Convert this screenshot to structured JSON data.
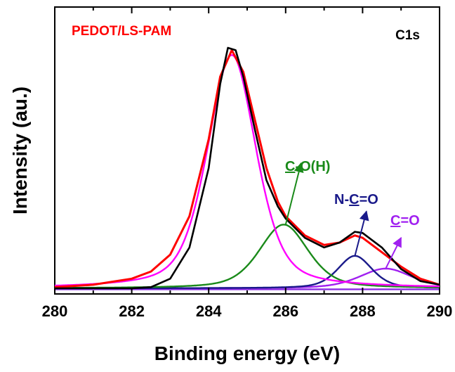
{
  "chart_data": {
    "type": "line",
    "title": "",
    "sample_label": "PEDOT/LS-PAM",
    "region_label": "C1s",
    "xlabel": "Binding energy (eV)",
    "ylabel": "Intensity (au.)",
    "xlim": [
      280,
      290
    ],
    "ylim": [
      0,
      1
    ],
    "xticks": [
      280,
      282,
      284,
      286,
      288,
      290
    ],
    "grid": false,
    "legend": "none",
    "series": [
      {
        "key": "measured",
        "color": "#000000",
        "baseline": 0.0,
        "points": [
          [
            280,
            0.0
          ],
          [
            282,
            0.0
          ],
          [
            282.5,
            0.005
          ],
          [
            283,
            0.04
          ],
          [
            283.5,
            0.17
          ],
          [
            284,
            0.5
          ],
          [
            284.3,
            0.85
          ],
          [
            284.5,
            1.0
          ],
          [
            284.7,
            0.99
          ],
          [
            284.9,
            0.88
          ],
          [
            285.2,
            0.66
          ],
          [
            285.5,
            0.45
          ],
          [
            285.8,
            0.34
          ],
          [
            286,
            0.29
          ],
          [
            286.5,
            0.21
          ],
          [
            287,
            0.17
          ],
          [
            287.4,
            0.19
          ],
          [
            287.8,
            0.235
          ],
          [
            288,
            0.23
          ],
          [
            288.5,
            0.17
          ],
          [
            289,
            0.08
          ],
          [
            289.5,
            0.03
          ],
          [
            290,
            0.015
          ]
        ]
      },
      {
        "key": "envelope",
        "color": "#ff0000",
        "baseline": 0.0,
        "points": [
          [
            280,
            0.005
          ],
          [
            281,
            0.015
          ],
          [
            282,
            0.04
          ],
          [
            282.5,
            0.07
          ],
          [
            283,
            0.14
          ],
          [
            283.5,
            0.3
          ],
          [
            284,
            0.62
          ],
          [
            284.3,
            0.88
          ],
          [
            284.6,
            0.99
          ],
          [
            284.9,
            0.9
          ],
          [
            285.2,
            0.7
          ],
          [
            285.5,
            0.5
          ],
          [
            285.8,
            0.36
          ],
          [
            286,
            0.3
          ],
          [
            286.5,
            0.22
          ],
          [
            287,
            0.18
          ],
          [
            287.4,
            0.19
          ],
          [
            287.8,
            0.22
          ],
          [
            288,
            0.21
          ],
          [
            288.5,
            0.15
          ],
          [
            289,
            0.09
          ],
          [
            289.5,
            0.04
          ],
          [
            290,
            0.015
          ]
        ]
      },
      {
        "key": "C-C/C=C",
        "color": "#ff00ff",
        "center": 284.6,
        "height": 0.97,
        "fwhm": 1.5,
        "baseline": 0.0
      },
      {
        "key": "C-O(H)",
        "color": "#1a8a1a",
        "center": 285.95,
        "height": 0.265,
        "fwhm": 1.5,
        "baseline": 0.0
      },
      {
        "key": "N-C=O",
        "color": "#1a1a8a",
        "center": 287.8,
        "height": 0.135,
        "fwhm": 1.05,
        "baseline": 0.0
      },
      {
        "key": "C=O",
        "color": "#a020f0",
        "center": 288.6,
        "height": 0.082,
        "fwhm": 1.6,
        "baseline": 0.0
      },
      {
        "key": "background",
        "color": "#8a2be2",
        "baseline": -0.004
      }
    ],
    "annotations": [
      {
        "key": "co_h",
        "prefix": "",
        "underlined": "C",
        "suffix": "-O(H)",
        "color": "#1a8a1a",
        "arrow_from": [
          286.0,
          0.265
        ],
        "arrow_to": [
          286.4,
          0.52
        ]
      },
      {
        "key": "n_c_o",
        "prefix": "N-",
        "underlined": "C",
        "suffix": "=O",
        "color": "#1a1a8a",
        "arrow_from": [
          287.8,
          0.135
        ],
        "arrow_to": [
          288.1,
          0.32
        ]
      },
      {
        "key": "c_o",
        "prefix": "",
        "underlined": "C",
        "suffix": "=O",
        "color": "#a020f0",
        "arrow_from": [
          288.6,
          0.082
        ],
        "arrow_to": [
          289.0,
          0.21
        ]
      }
    ]
  }
}
